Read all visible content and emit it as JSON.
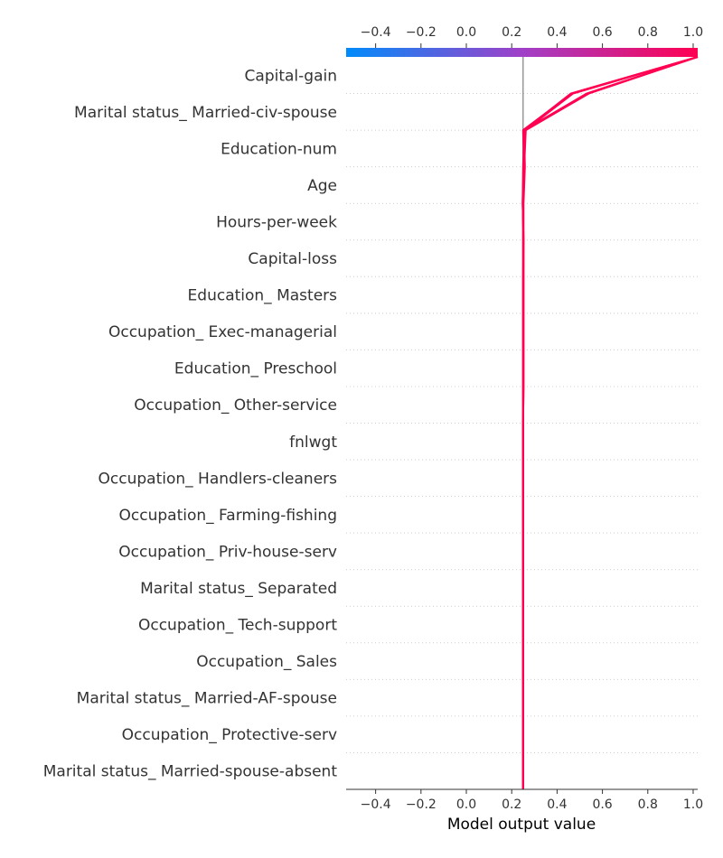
{
  "chart_data": {
    "type": "line",
    "title": "",
    "xlabel": "Model output value",
    "ylabel": "",
    "xlim": [
      -0.53,
      1.02
    ],
    "xticks": [
      -0.4,
      -0.2,
      0.0,
      0.2,
      0.4,
      0.6,
      0.8,
      1.0
    ],
    "tick_labels": [
      "−0.4",
      "−0.2",
      "0.0",
      "0.2",
      "0.4",
      "0.6",
      "0.8",
      "1.0"
    ],
    "base_value": 0.25,
    "grid": "dotted horizontal",
    "colorbar": {
      "range": [
        -0.53,
        1.02
      ],
      "low_color": "#008bfb",
      "mid_color": "#a040c8",
      "high_color": "#ff0052"
    },
    "line_color": "#ff0052",
    "features": [
      "Marital status_ Married-spouse-absent",
      "Occupation_ Protective-serv",
      "Marital status_ Married-AF-spouse",
      "Occupation_ Sales",
      "Occupation_ Tech-support",
      "Marital status_ Separated",
      "Occupation_ Priv-house-serv",
      "Occupation_ Farming-fishing",
      "Occupation_ Handlers-cleaners",
      "fnlwgt",
      "Occupation_ Other-service",
      "Education_ Preschool",
      "Occupation_ Exec-managerial",
      "Education_ Masters",
      "Capital-loss",
      "Hours-per-week",
      "Age",
      "Education-num",
      "Marital status_ Married-civ-spouse",
      "Capital-gain"
    ],
    "series": [
      {
        "values": [
          0.25,
          0.25,
          0.25,
          0.25,
          0.25,
          0.25,
          0.25,
          0.25,
          0.25,
          0.25,
          0.252,
          0.252,
          0.252,
          0.252,
          0.252,
          0.248,
          0.25,
          0.255,
          0.46,
          1.02
        ]
      },
      {
        "values": [
          0.25,
          0.25,
          0.25,
          0.25,
          0.25,
          0.25,
          0.25,
          0.25,
          0.25,
          0.25,
          0.252,
          0.252,
          0.252,
          0.252,
          0.252,
          0.248,
          0.252,
          0.26,
          0.47,
          1.02
        ]
      },
      {
        "values": [
          0.25,
          0.25,
          0.25,
          0.25,
          0.25,
          0.25,
          0.25,
          0.25,
          0.25,
          0.25,
          0.25,
          0.25,
          0.25,
          0.25,
          0.25,
          0.25,
          0.255,
          0.262,
          0.54,
          1.02
        ]
      },
      {
        "values": [
          0.25,
          0.25,
          0.25,
          0.25,
          0.25,
          0.25,
          0.25,
          0.25,
          0.25,
          0.25,
          0.25,
          0.25,
          0.25,
          0.25,
          0.252,
          0.252,
          0.258,
          0.255,
          0.53,
          1.02
        ]
      },
      {
        "values": [
          0.25,
          0.25,
          0.25,
          0.25,
          0.25,
          0.25,
          0.25,
          0.25,
          0.25,
          0.25,
          0.25,
          0.25,
          0.25,
          0.25,
          0.25,
          0.25,
          0.254,
          0.25,
          0.465,
          1.02
        ]
      }
    ]
  }
}
